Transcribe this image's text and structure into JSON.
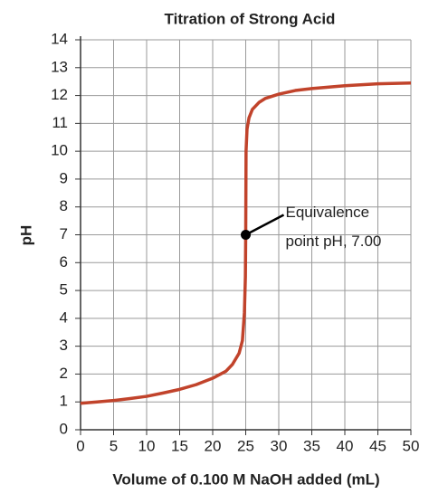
{
  "chart_data": {
    "type": "line",
    "title": "Titration of Strong Acid",
    "x_label": "Volume of 0.100 M NaOH added (mL)",
    "y_label": "pH",
    "x": [
      0,
      2.5,
      5,
      7.5,
      10,
      12.5,
      15,
      17.5,
      20,
      22,
      23,
      24,
      24.5,
      24.8,
      24.95,
      25,
      25.05,
      25.2,
      25.5,
      26,
      27,
      28,
      30,
      32.5,
      35,
      40,
      45,
      50
    ],
    "values": [
      0.95,
      1.0,
      1.05,
      1.12,
      1.2,
      1.32,
      1.45,
      1.62,
      1.85,
      2.1,
      2.35,
      2.75,
      3.2,
      4.2,
      5.5,
      7.0,
      10.0,
      10.8,
      11.2,
      11.5,
      11.75,
      11.9,
      12.05,
      12.18,
      12.25,
      12.35,
      12.42,
      12.45
    ],
    "color": "#c1432b",
    "xlim": [
      0,
      50
    ],
    "xticks": [
      0,
      5,
      10,
      15,
      20,
      25,
      30,
      35,
      40,
      45,
      50
    ],
    "ylim": [
      0,
      14
    ],
    "yticks": [
      0,
      1,
      2,
      3,
      4,
      5,
      6,
      7,
      8,
      9,
      10,
      11,
      12,
      13,
      14
    ],
    "grid": true,
    "annotation": {
      "lines": [
        "Equivalence",
        "point pH, 7.00"
      ],
      "x": 25,
      "y": 7
    }
  }
}
